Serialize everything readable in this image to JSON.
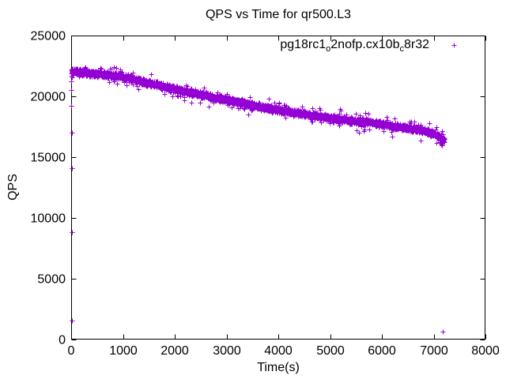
{
  "window": {
    "background": "#ffffff"
  },
  "chart_data": {
    "type": "scatter",
    "title": "QPS vs Time for qr500.L3",
    "xlabel": "Time(s)",
    "ylabel": "QPS",
    "xlim": [
      0,
      8000
    ],
    "ylim": [
      0,
      25000
    ],
    "xticks": [
      0,
      1000,
      2000,
      3000,
      4000,
      5000,
      6000,
      7000,
      8000
    ],
    "yticks": [
      0,
      5000,
      10000,
      15000,
      20000,
      25000
    ],
    "grid": false,
    "legend_position": "top-right-inside",
    "axis_color": "#000000",
    "series": [
      {
        "name": "pg18rc1_o2nofp.cx10b_c8r32",
        "legend_segments": [
          {
            "text": "pg18rc1"
          },
          {
            "sub": "o"
          },
          {
            "text": "2nofp.cx10b"
          },
          {
            "sub": "c"
          },
          {
            "text": "8r32"
          }
        ],
        "color": "#9400D3",
        "marker": "plus",
        "sample_interval_s": 2,
        "time_range_s": [
          0,
          7205
        ],
        "jitter_qps": 320,
        "spike_chance": 0.04,
        "trend": [
          [
            0,
            22050
          ],
          [
            300,
            21950
          ],
          [
            600,
            21800
          ],
          [
            900,
            21650
          ],
          [
            1100,
            21550
          ],
          [
            1400,
            21200
          ],
          [
            1700,
            20900
          ],
          [
            2100,
            20500
          ],
          [
            2500,
            20150
          ],
          [
            2900,
            19800
          ],
          [
            3350,
            19450
          ],
          [
            3650,
            19150
          ],
          [
            4000,
            18870
          ],
          [
            4430,
            18600
          ],
          [
            4800,
            18350
          ],
          [
            5200,
            18100
          ],
          [
            5600,
            17920
          ],
          [
            5950,
            17760
          ],
          [
            6300,
            17520
          ],
          [
            6700,
            17280
          ],
          [
            7000,
            16950
          ],
          [
            7205,
            16400
          ]
        ],
        "warmup_points": [
          [
            2,
            21700
          ],
          [
            3,
            21250
          ],
          [
            4,
            20550
          ],
          [
            6,
            19200
          ],
          [
            8,
            17000
          ],
          [
            10,
            14100
          ],
          [
            14,
            8850
          ],
          [
            18,
            1530
          ]
        ],
        "outlier_points": [
          [
            7176,
            630
          ]
        ]
      }
    ]
  }
}
